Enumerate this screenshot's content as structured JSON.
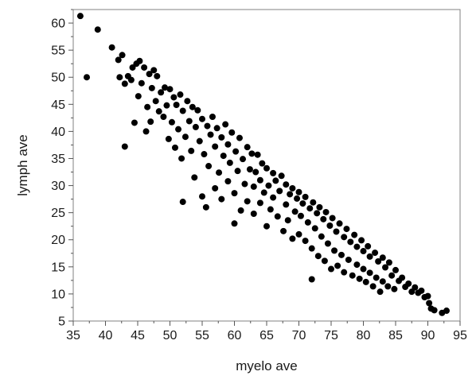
{
  "chart_data": {
    "type": "scatter",
    "title": "",
    "xlabel": "myelo ave",
    "ylabel": "lymph ave",
    "xlim": [
      35,
      95
    ],
    "ylim": [
      5,
      62.5
    ],
    "xticks": [
      35,
      40,
      45,
      50,
      55,
      60,
      65,
      70,
      75,
      80,
      85,
      90,
      95
    ],
    "yticks": [
      5,
      10,
      15,
      20,
      25,
      30,
      35,
      40,
      45,
      50,
      55,
      60
    ],
    "grid": false,
    "marker_color": "#000000",
    "series": [
      {
        "points": [
          [
            36.1,
            61.3
          ],
          [
            37.1,
            50.0
          ],
          [
            38.8,
            58.8
          ],
          [
            41.0,
            55.5
          ],
          [
            42.0,
            53.2
          ],
          [
            42.2,
            50.0
          ],
          [
            42.6,
            54.1
          ],
          [
            43.0,
            48.8
          ],
          [
            43.0,
            37.2
          ],
          [
            43.5,
            50.2
          ],
          [
            44.0,
            49.5
          ],
          [
            44.2,
            51.8
          ],
          [
            44.5,
            41.6
          ],
          [
            44.8,
            52.5
          ],
          [
            45.1,
            46.5
          ],
          [
            45.3,
            53.0
          ],
          [
            45.6,
            48.9
          ],
          [
            46.0,
            51.8
          ],
          [
            46.3,
            40.0
          ],
          [
            46.5,
            44.5
          ],
          [
            46.8,
            50.6
          ],
          [
            47.0,
            41.8
          ],
          [
            47.2,
            48.0
          ],
          [
            47.5,
            51.3
          ],
          [
            47.8,
            45.6
          ],
          [
            48.0,
            50.2
          ],
          [
            48.3,
            43.7
          ],
          [
            48.6,
            47.2
          ],
          [
            49.0,
            42.7
          ],
          [
            49.2,
            48.1
          ],
          [
            49.5,
            44.8
          ],
          [
            49.8,
            38.6
          ],
          [
            50.0,
            47.8
          ],
          [
            50.3,
            41.7
          ],
          [
            50.6,
            46.3
          ],
          [
            50.8,
            37.0
          ],
          [
            51.0,
            44.9
          ],
          [
            51.3,
            40.4
          ],
          [
            51.6,
            46.8
          ],
          [
            51.8,
            35.0
          ],
          [
            52.0,
            27.0
          ],
          [
            52.0,
            43.8
          ],
          [
            52.4,
            39.0
          ],
          [
            52.7,
            45.6
          ],
          [
            53.0,
            41.9
          ],
          [
            53.3,
            36.4
          ],
          [
            53.5,
            44.5
          ],
          [
            53.8,
            31.5
          ],
          [
            54.0,
            40.8
          ],
          [
            54.3,
            43.9
          ],
          [
            54.6,
            38.2
          ],
          [
            55.0,
            28.0
          ],
          [
            55.0,
            42.3
          ],
          [
            55.3,
            35.8
          ],
          [
            55.6,
            26.0
          ],
          [
            55.8,
            41.0
          ],
          [
            56.0,
            33.6
          ],
          [
            56.3,
            39.4
          ],
          [
            56.6,
            42.7
          ],
          [
            57.0,
            29.5
          ],
          [
            57.0,
            37.2
          ],
          [
            57.3,
            40.6
          ],
          [
            57.6,
            32.4
          ],
          [
            58.0,
            27.5
          ],
          [
            58.0,
            38.9
          ],
          [
            58.3,
            35.5
          ],
          [
            58.6,
            41.3
          ],
          [
            59.0,
            30.8
          ],
          [
            59.0,
            37.6
          ],
          [
            59.3,
            34.2
          ],
          [
            59.6,
            39.8
          ],
          [
            60.0,
            23.0
          ],
          [
            60.0,
            28.6
          ],
          [
            60.2,
            36.3
          ],
          [
            60.5,
            32.7
          ],
          [
            60.8,
            38.8
          ],
          [
            61.0,
            25.4
          ],
          [
            61.3,
            34.9
          ],
          [
            61.6,
            30.3
          ],
          [
            62.0,
            37.1
          ],
          [
            62.0,
            27.1
          ],
          [
            62.4,
            33.0
          ],
          [
            62.7,
            35.9
          ],
          [
            63.0,
            24.8
          ],
          [
            63.0,
            29.8
          ],
          [
            63.3,
            32.5
          ],
          [
            63.6,
            35.7
          ],
          [
            64.0,
            26.8
          ],
          [
            64.0,
            31.0
          ],
          [
            64.3,
            34.1
          ],
          [
            64.6,
            28.7
          ],
          [
            65.0,
            22.5
          ],
          [
            65.0,
            33.2
          ],
          [
            65.3,
            30.0
          ],
          [
            65.6,
            25.6
          ],
          [
            66.0,
            32.3
          ],
          [
            66.0,
            27.8
          ],
          [
            66.4,
            30.9
          ],
          [
            66.7,
            24.3
          ],
          [
            67.0,
            29.0
          ],
          [
            67.3,
            31.8
          ],
          [
            67.6,
            21.6
          ],
          [
            68.0,
            26.5
          ],
          [
            68.0,
            30.2
          ],
          [
            68.3,
            23.6
          ],
          [
            68.6,
            28.4
          ],
          [
            69.0,
            20.2
          ],
          [
            69.0,
            29.5
          ],
          [
            69.4,
            25.2
          ],
          [
            69.7,
            27.6
          ],
          [
            70.0,
            21.0
          ],
          [
            70.0,
            28.8
          ],
          [
            70.3,
            24.4
          ],
          [
            70.6,
            26.7
          ],
          [
            71.0,
            19.8
          ],
          [
            71.0,
            27.9
          ],
          [
            71.4,
            23.2
          ],
          [
            71.7,
            25.8
          ],
          [
            72.0,
            12.7
          ],
          [
            72.0,
            18.4
          ],
          [
            72.2,
            26.9
          ],
          [
            72.5,
            22.1
          ],
          [
            72.8,
            24.9
          ],
          [
            73.0,
            17.0
          ],
          [
            73.2,
            26.0
          ],
          [
            73.5,
            20.6
          ],
          [
            73.8,
            23.8
          ],
          [
            74.0,
            16.1
          ],
          [
            74.2,
            25.1
          ],
          [
            74.5,
            19.3
          ],
          [
            74.8,
            22.6
          ],
          [
            75.0,
            14.6
          ],
          [
            75.2,
            24.0
          ],
          [
            75.5,
            18.0
          ],
          [
            75.8,
            21.5
          ],
          [
            76.0,
            15.2
          ],
          [
            76.3,
            23.0
          ],
          [
            76.6,
            17.2
          ],
          [
            77.0,
            20.5
          ],
          [
            77.0,
            14.0
          ],
          [
            77.4,
            22.0
          ],
          [
            77.7,
            16.3
          ],
          [
            78.0,
            19.6
          ],
          [
            78.3,
            13.4
          ],
          [
            78.6,
            20.9
          ],
          [
            79.0,
            15.4
          ],
          [
            79.0,
            18.7
          ],
          [
            79.4,
            12.8
          ],
          [
            79.7,
            19.9
          ],
          [
            80.0,
            14.6
          ],
          [
            80.0,
            17.9
          ],
          [
            80.4,
            12.2
          ],
          [
            80.7,
            18.8
          ],
          [
            81.0,
            13.9
          ],
          [
            81.0,
            16.9
          ],
          [
            81.5,
            11.4
          ],
          [
            81.8,
            17.6
          ],
          [
            82.0,
            13.0
          ],
          [
            82.3,
            16.0
          ],
          [
            82.6,
            10.4
          ],
          [
            83.0,
            16.7
          ],
          [
            83.0,
            12.3
          ],
          [
            83.4,
            14.9
          ],
          [
            83.8,
            11.4
          ],
          [
            84.0,
            15.8
          ],
          [
            84.4,
            13.4
          ],
          [
            84.8,
            10.9
          ],
          [
            85.0,
            14.4
          ],
          [
            85.5,
            12.4
          ],
          [
            86.0,
            13.0
          ],
          [
            86.5,
            11.3
          ],
          [
            87.0,
            11.9
          ],
          [
            87.5,
            10.4
          ],
          [
            88.0,
            11.2
          ],
          [
            88.5,
            10.2
          ],
          [
            89.0,
            10.6
          ],
          [
            89.5,
            9.4
          ],
          [
            90.0,
            9.6
          ],
          [
            90.2,
            8.3
          ],
          [
            90.5,
            7.3
          ],
          [
            91.0,
            7.0
          ],
          [
            92.2,
            6.5
          ],
          [
            92.9,
            6.9
          ]
        ]
      }
    ]
  }
}
